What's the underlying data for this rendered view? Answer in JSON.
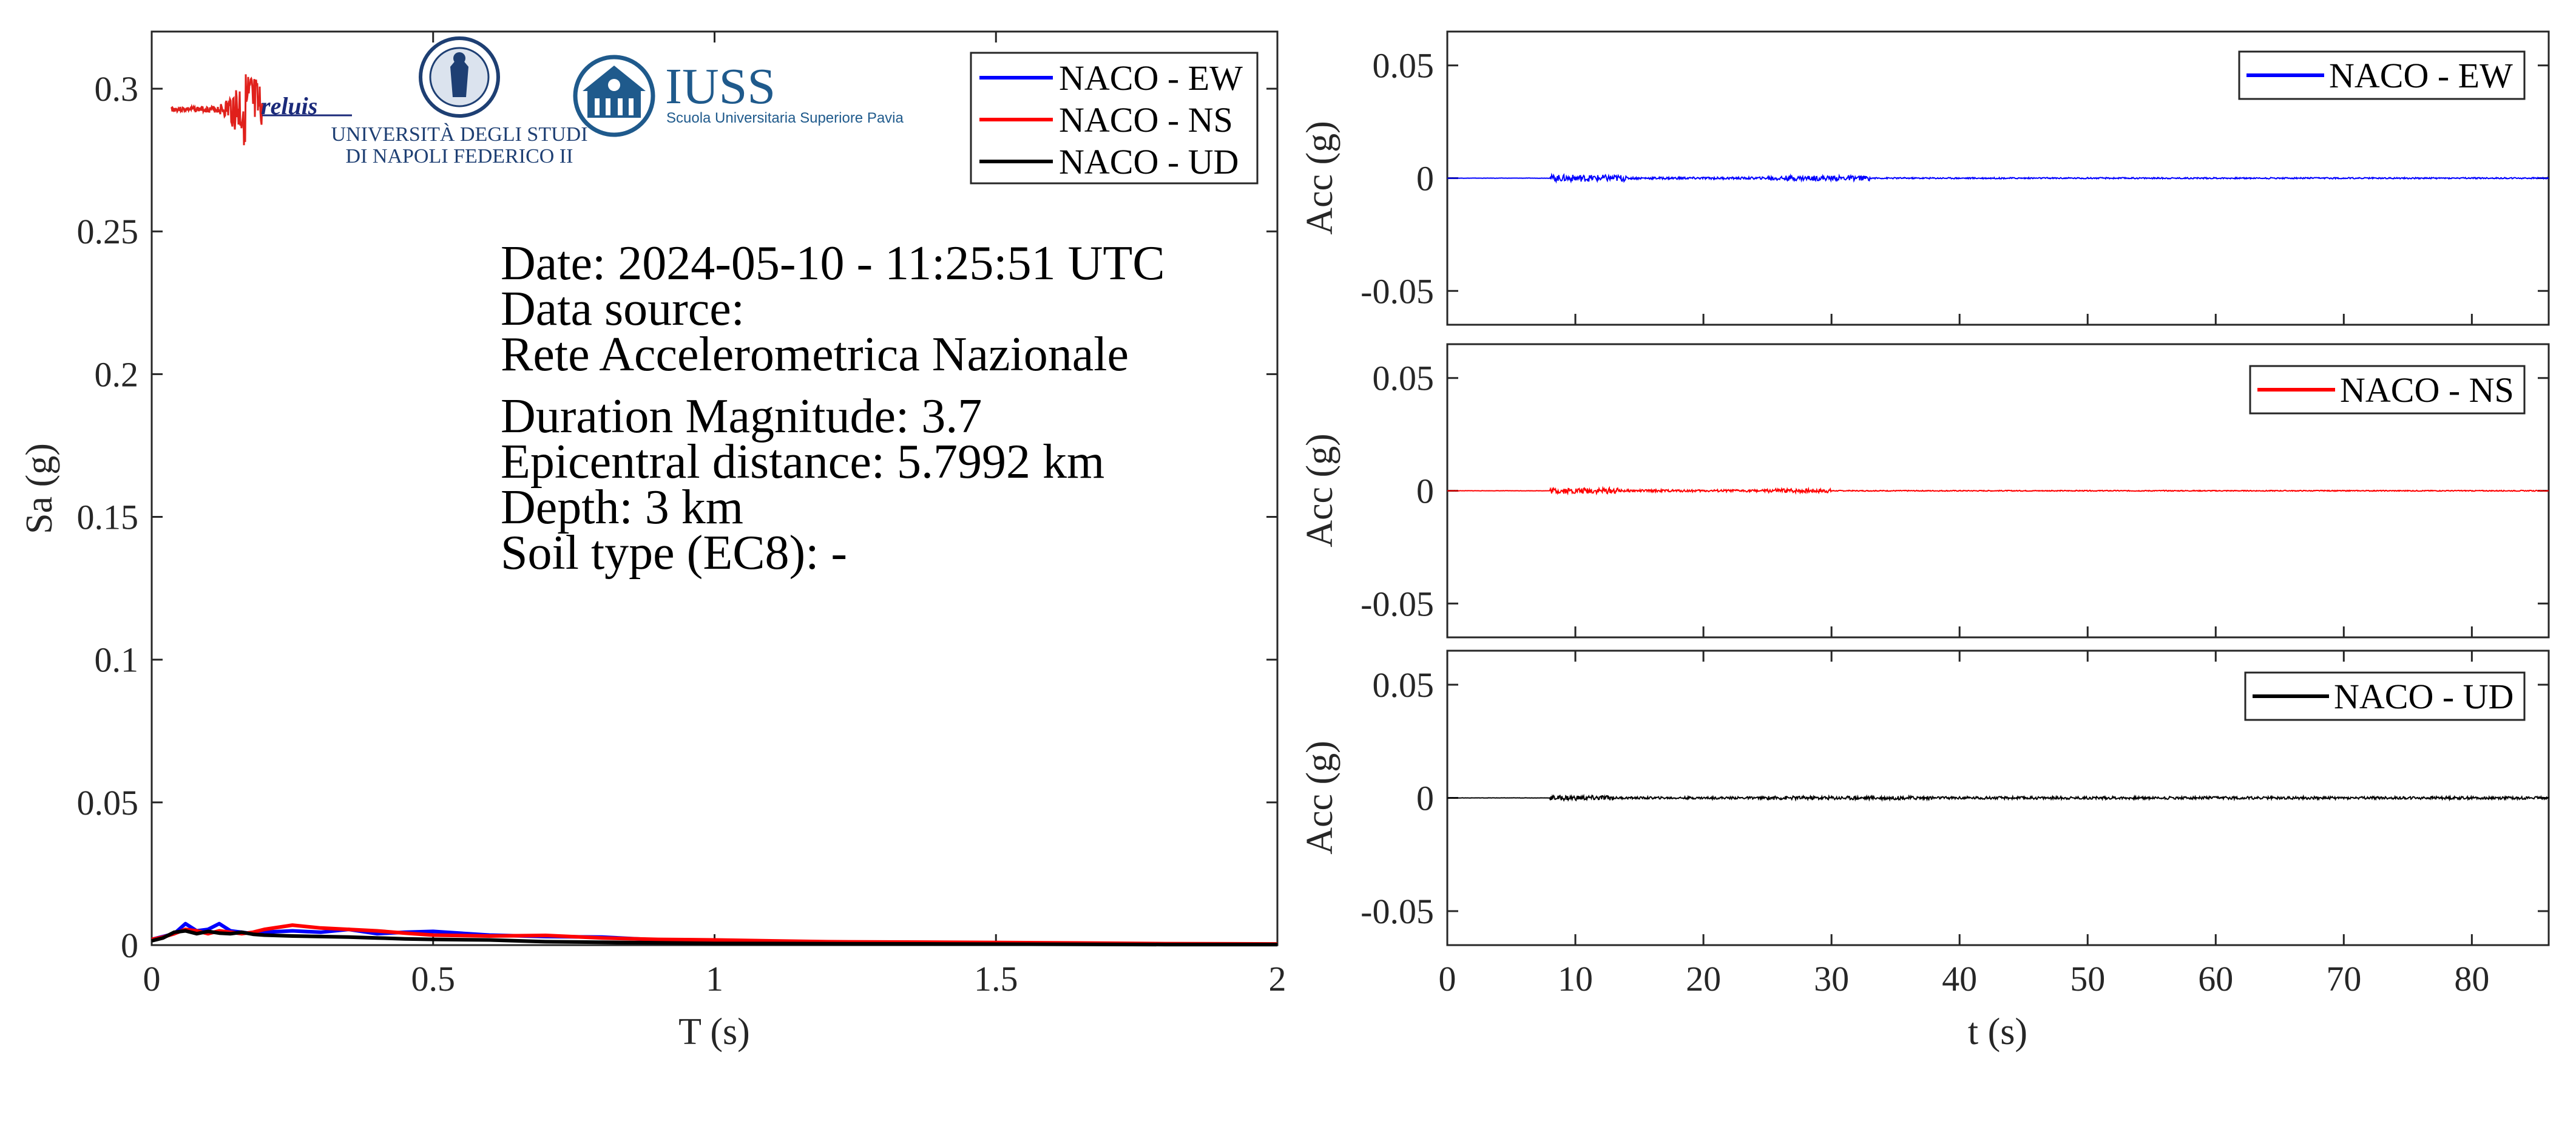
{
  "info": {
    "date": "Date: 2024-05-10 - 11:25:51 UTC",
    "source_label": "Data source:",
    "source_value": "Rete Accelerometrica Nazionale",
    "magnitude": "Duration Magnitude: 3.7",
    "distance": "Epicentral distance: 5.7992 km",
    "depth": "Depth: 3 km",
    "soil": "Soil type (EC8): -"
  },
  "logos": {
    "reluis": "reluis",
    "unina_line1": "UNIVERSITÀ DEGLI STUDI",
    "unina_line2": "DI NAPOLI FEDERICO II",
    "iuss_title": "IUSS",
    "iuss_subtitle": "Scuola Universitaria Superiore Pavia"
  },
  "colors": {
    "ew": "#0000ff",
    "ns": "#ff0000",
    "ud": "#000000",
    "axis": "#262626",
    "iuss_blue": "#1f5a8c",
    "reluis_blue": "#1b2a7a"
  },
  "chart_data": [
    {
      "type": "line",
      "name": "response-spectrum",
      "xlabel": "T (s)",
      "ylabel": "Sa (g)",
      "xlim": [
        0,
        2
      ],
      "ylim": [
        0,
        0.32
      ],
      "xticks": [
        0,
        0.5,
        1,
        1.5,
        2
      ],
      "xtick_labels": [
        "0",
        "0.5",
        "1",
        "1.5",
        "2"
      ],
      "yticks": [
        0,
        0.05,
        0.1,
        0.15,
        0.2,
        0.25,
        0.3
      ],
      "ytick_labels": [
        "0",
        "0.05",
        "0.1",
        "0.15",
        "0.2",
        "0.25",
        "0.3"
      ],
      "grid": false,
      "legend_position": "top-right",
      "series": [
        {
          "name": "NACO - EW",
          "color": "#0000ff",
          "x": [
            0,
            0.02,
            0.04,
            0.06,
            0.08,
            0.1,
            0.12,
            0.14,
            0.16,
            0.18,
            0.2,
            0.25,
            0.3,
            0.35,
            0.4,
            0.45,
            0.5,
            0.6,
            0.7,
            0.8,
            0.9,
            1.0,
            1.2,
            1.4,
            1.6,
            1.8,
            2.0
          ],
          "y": [
            0.002,
            0.003,
            0.004,
            0.0075,
            0.005,
            0.0055,
            0.0075,
            0.005,
            0.0045,
            0.004,
            0.0045,
            0.005,
            0.0045,
            0.0055,
            0.004,
            0.0045,
            0.0048,
            0.0035,
            0.003,
            0.0028,
            0.0018,
            0.0014,
            0.001,
            0.0008,
            0.0006,
            0.0004,
            0.0003
          ]
        },
        {
          "name": "NACO - NS",
          "color": "#ff0000",
          "x": [
            0,
            0.02,
            0.04,
            0.06,
            0.08,
            0.1,
            0.12,
            0.14,
            0.16,
            0.18,
            0.2,
            0.25,
            0.3,
            0.35,
            0.4,
            0.45,
            0.5,
            0.6,
            0.7,
            0.8,
            0.9,
            1.0,
            1.2,
            1.4,
            1.6,
            1.8,
            2.0
          ],
          "y": [
            0.002,
            0.0028,
            0.004,
            0.0055,
            0.005,
            0.004,
            0.005,
            0.0045,
            0.004,
            0.0045,
            0.0055,
            0.007,
            0.006,
            0.0055,
            0.005,
            0.0042,
            0.0035,
            0.0032,
            0.0034,
            0.0025,
            0.002,
            0.0018,
            0.0012,
            0.001,
            0.0008,
            0.0005,
            0.0004
          ]
        },
        {
          "name": "NACO - UD",
          "color": "#000000",
          "x": [
            0,
            0.02,
            0.04,
            0.06,
            0.08,
            0.1,
            0.12,
            0.14,
            0.16,
            0.18,
            0.2,
            0.25,
            0.3,
            0.35,
            0.4,
            0.45,
            0.5,
            0.6,
            0.7,
            0.8,
            0.9,
            1.0,
            1.2,
            1.4,
            1.6,
            1.8,
            2.0
          ],
          "y": [
            0.0015,
            0.0025,
            0.0045,
            0.005,
            0.004,
            0.0048,
            0.0042,
            0.004,
            0.0045,
            0.0038,
            0.0035,
            0.0032,
            0.003,
            0.0028,
            0.0025,
            0.0022,
            0.002,
            0.0018,
            0.0012,
            0.001,
            0.0008,
            0.0006,
            0.0005,
            0.0004,
            0.0003,
            0.0002,
            0.0002
          ]
        }
      ]
    },
    {
      "type": "line",
      "name": "accelerogram-ew",
      "xlabel": "",
      "ylabel": "Acc (g)",
      "xlim": [
        0,
        86
      ],
      "ylim": [
        -0.065,
        0.065
      ],
      "yticks": [
        -0.05,
        0,
        0.05
      ],
      "ytick_labels": [
        "-0.05",
        "0",
        "0.05"
      ],
      "legend_position": "top-right",
      "series": [
        {
          "name": "NACO - EW",
          "color": "#0000ff",
          "bursts": [
            {
              "start": 8.0,
              "end": 14.0,
              "amp": 0.0015
            },
            {
              "start": 14.0,
              "end": 25.0,
              "amp": 0.0005
            },
            {
              "start": 25.0,
              "end": 33.0,
              "amp": 0.0011
            },
            {
              "start": 33.0,
              "end": 86.0,
              "amp": 0.0003
            }
          ]
        }
      ]
    },
    {
      "type": "line",
      "name": "accelerogram-ns",
      "xlabel": "",
      "ylabel": "Acc (g)",
      "xlim": [
        0,
        86
      ],
      "ylim": [
        -0.065,
        0.065
      ],
      "yticks": [
        -0.05,
        0,
        0.05
      ],
      "ytick_labels": [
        "-0.05",
        "0",
        "0.05"
      ],
      "legend_position": "top-right",
      "series": [
        {
          "name": "NACO - NS",
          "color": "#ff0000",
          "bursts": [
            {
              "start": 8.0,
              "end": 13.5,
              "amp": 0.0013
            },
            {
              "start": 13.5,
              "end": 25.0,
              "amp": 0.0005
            },
            {
              "start": 25.0,
              "end": 30.0,
              "amp": 0.0009
            },
            {
              "start": 30.0,
              "end": 86.0,
              "amp": 0.0002
            }
          ]
        }
      ]
    },
    {
      "type": "line",
      "name": "accelerogram-ud",
      "xlabel": "t (s)",
      "ylabel": "Acc (g)",
      "xlim": [
        0,
        86
      ],
      "ylim": [
        -0.065,
        0.065
      ],
      "xticks": [
        0,
        10,
        20,
        30,
        40,
        50,
        60,
        70,
        80
      ],
      "xtick_labels": [
        "0",
        "10",
        "20",
        "30",
        "40",
        "50",
        "60",
        "70",
        "80"
      ],
      "yticks": [
        -0.05,
        0,
        0.05
      ],
      "ytick_labels": [
        "-0.05",
        "0",
        "0.05"
      ],
      "legend_position": "top-right",
      "series": [
        {
          "name": "NACO - UD",
          "color": "#000000",
          "bursts": [
            {
              "start": 8.0,
              "end": 13.0,
              "amp": 0.0011
            },
            {
              "start": 13.0,
              "end": 25.0,
              "amp": 0.0005
            },
            {
              "start": 25.0,
              "end": 38.0,
              "amp": 0.0008
            },
            {
              "start": 38.0,
              "end": 86.0,
              "amp": 0.0006
            }
          ]
        }
      ]
    }
  ]
}
